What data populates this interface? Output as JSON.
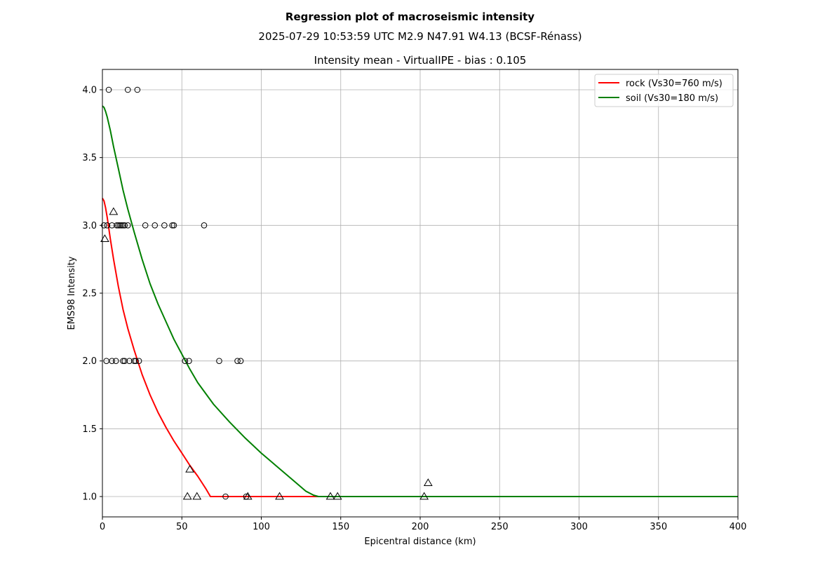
{
  "figure": {
    "title": "Regression plot of macroseismic intensity",
    "subtitle": "2025-07-29 10:53:59 UTC M2.9 N47.91 W4.13 (BCSF-Rénass)"
  },
  "chart_data": {
    "type": "scatter",
    "title": "Intensity mean - VirtualIPE - bias : 0.105",
    "xlabel": "Epicentral distance (km)",
    "ylabel": "EMS98 Intensity",
    "xlim": [
      0,
      400
    ],
    "ylim": [
      0.85,
      4.15
    ],
    "xticks": [
      0,
      50,
      100,
      150,
      200,
      250,
      300,
      350,
      400
    ],
    "xtick_labels": [
      "0",
      "50",
      "100",
      "150",
      "200",
      "250",
      "300",
      "350",
      "400"
    ],
    "yticks": [
      1.0,
      1.5,
      2.0,
      2.5,
      3.0,
      3.5,
      4.0
    ],
    "ytick_labels": [
      "1.0",
      "1.5",
      "2.0",
      "2.5",
      "3.0",
      "3.5",
      "4.0"
    ],
    "grid": true,
    "legend_position": "top-right",
    "series": [
      {
        "name": "rock (Vs30=760 m/s)",
        "kind": "line",
        "color": "#ff0000",
        "x": [
          0,
          1,
          2,
          3,
          5,
          7,
          10,
          13,
          16,
          20,
          25,
          30,
          35,
          40,
          45,
          50,
          55,
          60,
          65,
          68,
          70,
          80,
          100,
          130,
          150,
          200,
          300,
          400
        ],
        "y": [
          3.2,
          3.18,
          3.13,
          3.06,
          2.9,
          2.75,
          2.55,
          2.38,
          2.24,
          2.08,
          1.9,
          1.75,
          1.62,
          1.51,
          1.41,
          1.32,
          1.23,
          1.15,
          1.06,
          1.0,
          1.0,
          1.0,
          1.0,
          1.0,
          1.0,
          1.0,
          1.0,
          1.0
        ]
      },
      {
        "name": "soil (Vs30=180 m/s)",
        "kind": "line",
        "color": "#008000",
        "x": [
          0,
          1,
          2,
          3,
          5,
          7,
          10,
          13,
          16,
          20,
          25,
          30,
          35,
          40,
          45,
          50,
          55,
          60,
          70,
          80,
          90,
          100,
          110,
          120,
          128,
          133,
          136,
          140,
          150,
          200,
          300,
          400
        ],
        "y": [
          3.88,
          3.87,
          3.84,
          3.8,
          3.7,
          3.58,
          3.42,
          3.26,
          3.12,
          2.95,
          2.75,
          2.57,
          2.42,
          2.29,
          2.16,
          2.05,
          1.94,
          1.84,
          1.68,
          1.55,
          1.43,
          1.32,
          1.22,
          1.12,
          1.04,
          1.01,
          1.0,
          1.0,
          1.0,
          1.0,
          1.0,
          1.0
        ]
      },
      {
        "kind": "scatter",
        "marker": "circle",
        "x": [
          4,
          16,
          22,
          1,
          3,
          6,
          9,
          10,
          11,
          12,
          13,
          14,
          16,
          27,
          33,
          39,
          44,
          45,
          64,
          2.5,
          6,
          8.5,
          13,
          14,
          17,
          20,
          21,
          23,
          52,
          54.5,
          73.5,
          85,
          87,
          77.5,
          90.5
        ],
        "y": [
          4.0,
          4.0,
          4.0,
          3.0,
          3.0,
          3.0,
          3.0,
          3.0,
          3.0,
          3.0,
          3.0,
          3.0,
          3.0,
          3.0,
          3.0,
          3.0,
          3.0,
          3.0,
          3.0,
          2.0,
          2.0,
          2.0,
          2.0,
          2.0,
          2.0,
          2.0,
          2.0,
          2.0,
          2.0,
          2.0,
          2.0,
          2.0,
          2.0,
          1.0,
          1.0
        ]
      },
      {
        "kind": "scatter",
        "marker": "triangle",
        "x": [
          7,
          1.5,
          55,
          53.5,
          59.5,
          91.5,
          111.5,
          143.5,
          148,
          202.5,
          205
        ],
        "y": [
          3.1,
          2.9,
          1.2,
          1.0,
          1.0,
          1.0,
          1.0,
          1.0,
          1.0,
          1.0,
          1.1
        ]
      }
    ]
  }
}
